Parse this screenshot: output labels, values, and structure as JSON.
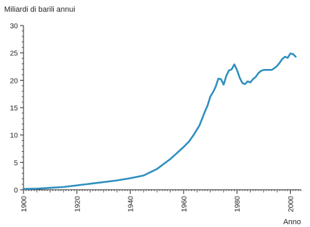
{
  "chart_data": {
    "type": "line",
    "title": "",
    "ylabel": "Miliardi di barili annui",
    "xlabel": "Anno",
    "xlim": [
      1900,
      2004
    ],
    "ylim": [
      0,
      30
    ],
    "x_ticks": [
      1900,
      1920,
      1940,
      1960,
      1980,
      2000
    ],
    "y_ticks": [
      0,
      5,
      10,
      15,
      20,
      25,
      30
    ],
    "grid": false,
    "line_color": "#2e8fbf",
    "axis_color": "#231f20",
    "series": [
      {
        "x": [
          1900,
          1905,
          1910,
          1915,
          1920,
          1925,
          1930,
          1935,
          1940,
          1945,
          1950,
          1955,
          1960,
          1962,
          1964,
          1966,
          1968,
          1969,
          1970,
          1971,
          1972,
          1973,
          1974,
          1975,
          1976,
          1977,
          1978,
          1979,
          1980,
          1981,
          1982,
          1983,
          1984,
          1985,
          1986,
          1987,
          1988,
          1989,
          1990,
          1991,
          1992,
          1993,
          1994,
          1995,
          1996,
          1997,
          1998,
          1999,
          2000,
          2001,
          2002
        ],
        "values": [
          0.15,
          0.2,
          0.35,
          0.5,
          0.8,
          1.1,
          1.4,
          1.7,
          2.1,
          2.6,
          3.8,
          5.6,
          7.8,
          8.8,
          10.2,
          11.8,
          14.3,
          15.4,
          17.0,
          17.8,
          18.8,
          20.3,
          20.2,
          19.2,
          20.8,
          21.8,
          22.0,
          22.9,
          21.9,
          20.5,
          19.5,
          19.3,
          19.8,
          19.6,
          20.2,
          20.6,
          21.3,
          21.7,
          21.9,
          21.9,
          21.9,
          21.9,
          22.2,
          22.6,
          23.2,
          23.9,
          24.3,
          24.1,
          24.9,
          24.8,
          24.3
        ]
      }
    ]
  }
}
